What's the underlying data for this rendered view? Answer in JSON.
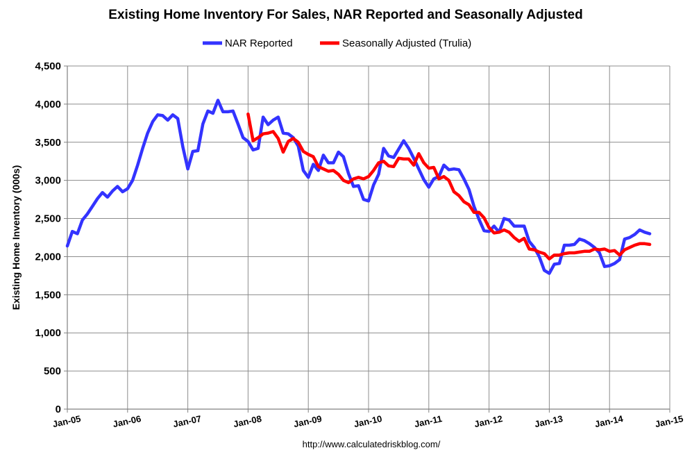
{
  "chart_data": {
    "type": "line",
    "title": "Existing Home Inventory For Sales, NAR Reported and Seasonally Adjusted",
    "xlabel": "",
    "ylabel": "Existing Home Inventory (000s)",
    "source": "http://www.calculatedriskblog.com/",
    "ylim": [
      0,
      4500
    ],
    "yticks": [
      0,
      500,
      1000,
      1500,
      2000,
      2500,
      3000,
      3500,
      4000,
      4500
    ],
    "ytick_labels": [
      "0",
      "500",
      "1,000",
      "1,500",
      "2,000",
      "2,500",
      "3,000",
      "3,500",
      "4,000",
      "4,500"
    ],
    "xlim": [
      2005.0,
      2015.0
    ],
    "xticks": [
      2005,
      2006,
      2007,
      2008,
      2009,
      2010,
      2011,
      2012,
      2013,
      2014,
      2015
    ],
    "xtick_labels": [
      "Jan-05",
      "Jan-06",
      "Jan-07",
      "Jan-08",
      "Jan-09",
      "Jan-10",
      "Jan-11",
      "Jan-12",
      "Jan-13",
      "Jan-14",
      "Jan-15"
    ],
    "grid": true,
    "legend_position": "top-center",
    "series": [
      {
        "name": "NAR Reported",
        "color": "#3333ff",
        "x": [
          2005.0,
          2005.083,
          2005.167,
          2005.25,
          2005.333,
          2005.417,
          2005.5,
          2005.583,
          2005.667,
          2005.75,
          2005.833,
          2005.917,
          2006.0,
          2006.083,
          2006.167,
          2006.25,
          2006.333,
          2006.417,
          2006.5,
          2006.583,
          2006.667,
          2006.75,
          2006.833,
          2006.917,
          2007.0,
          2007.083,
          2007.167,
          2007.25,
          2007.333,
          2007.417,
          2007.5,
          2007.583,
          2007.667,
          2007.75,
          2007.833,
          2007.917,
          2008.0,
          2008.083,
          2008.167,
          2008.25,
          2008.333,
          2008.417,
          2008.5,
          2008.583,
          2008.667,
          2008.75,
          2008.833,
          2008.917,
          2009.0,
          2009.083,
          2009.167,
          2009.25,
          2009.333,
          2009.417,
          2009.5,
          2009.583,
          2009.667,
          2009.75,
          2009.833,
          2009.917,
          2010.0,
          2010.083,
          2010.167,
          2010.25,
          2010.333,
          2010.417,
          2010.5,
          2010.583,
          2010.667,
          2010.75,
          2010.833,
          2010.917,
          2011.0,
          2011.083,
          2011.167,
          2011.25,
          2011.333,
          2011.417,
          2011.5,
          2011.583,
          2011.667,
          2011.75,
          2011.833,
          2011.917,
          2012.0,
          2012.083,
          2012.167,
          2012.25,
          2012.333,
          2012.417,
          2012.5,
          2012.583,
          2012.667,
          2012.75,
          2012.833,
          2012.917,
          2013.0,
          2013.083,
          2013.167,
          2013.25,
          2013.333,
          2013.417,
          2013.5,
          2013.583,
          2013.667,
          2013.75,
          2013.833,
          2013.917,
          2014.0,
          2014.083,
          2014.167,
          2014.25,
          2014.333,
          2014.417,
          2014.5,
          2014.583,
          2014.667
        ],
        "values": [
          2140,
          2330,
          2300,
          2480,
          2560,
          2660,
          2760,
          2840,
          2780,
          2860,
          2920,
          2850,
          2890,
          3000,
          3200,
          3420,
          3620,
          3770,
          3860,
          3850,
          3790,
          3860,
          3810,
          3440,
          3150,
          3380,
          3390,
          3740,
          3910,
          3880,
          4050,
          3900,
          3900,
          3910,
          3740,
          3560,
          3510,
          3400,
          3420,
          3830,
          3730,
          3790,
          3830,
          3620,
          3610,
          3560,
          3450,
          3130,
          3040,
          3210,
          3130,
          3330,
          3230,
          3230,
          3370,
          3310,
          3090,
          2920,
          2930,
          2750,
          2730,
          2940,
          3080,
          3420,
          3320,
          3300,
          3410,
          3520,
          3420,
          3290,
          3150,
          3010,
          2910,
          3020,
          3050,
          3200,
          3140,
          3150,
          3140,
          3020,
          2880,
          2660,
          2490,
          2340,
          2330,
          2400,
          2320,
          2500,
          2480,
          2400,
          2400,
          2400,
          2200,
          2120,
          2000,
          1820,
          1780,
          1900,
          1910,
          2150,
          2150,
          2160,
          2230,
          2210,
          2170,
          2120,
          2050,
          1870,
          1880,
          1910,
          1960,
          2230,
          2250,
          2290,
          2350,
          2320,
          2300
        ]
      },
      {
        "name": "Seasonally Adjusted (Trulia)",
        "color": "#ff0000",
        "x": [
          2008.0,
          2008.083,
          2008.167,
          2008.25,
          2008.333,
          2008.417,
          2008.5,
          2008.583,
          2008.667,
          2008.75,
          2008.833,
          2008.917,
          2009.0,
          2009.083,
          2009.167,
          2009.25,
          2009.333,
          2009.417,
          2009.5,
          2009.583,
          2009.667,
          2009.75,
          2009.833,
          2009.917,
          2010.0,
          2010.083,
          2010.167,
          2010.25,
          2010.333,
          2010.417,
          2010.5,
          2010.583,
          2010.667,
          2010.75,
          2010.833,
          2010.917,
          2011.0,
          2011.083,
          2011.167,
          2011.25,
          2011.333,
          2011.417,
          2011.5,
          2011.583,
          2011.667,
          2011.75,
          2011.833,
          2011.917,
          2012.0,
          2012.083,
          2012.167,
          2012.25,
          2012.333,
          2012.417,
          2012.5,
          2012.583,
          2012.667,
          2012.75,
          2012.833,
          2012.917,
          2013.0,
          2013.083,
          2013.167,
          2013.25,
          2013.333,
          2013.417,
          2013.5,
          2013.583,
          2013.667,
          2013.75,
          2013.833,
          2013.917,
          2014.0,
          2014.083,
          2014.167,
          2014.25,
          2014.333,
          2014.417,
          2014.5,
          2014.583,
          2014.667
        ],
        "values": [
          3870,
          3520,
          3560,
          3610,
          3620,
          3640,
          3550,
          3370,
          3510,
          3550,
          3500,
          3380,
          3340,
          3310,
          3180,
          3150,
          3120,
          3130,
          3080,
          3000,
          2970,
          3020,
          3040,
          3020,
          3050,
          3130,
          3230,
          3250,
          3190,
          3180,
          3290,
          3280,
          3280,
          3200,
          3350,
          3230,
          3160,
          3170,
          3020,
          3050,
          3000,
          2850,
          2800,
          2720,
          2680,
          2580,
          2580,
          2510,
          2380,
          2310,
          2320,
          2350,
          2320,
          2250,
          2200,
          2240,
          2100,
          2090,
          2060,
          2040,
          1970,
          2020,
          2020,
          2040,
          2050,
          2050,
          2060,
          2070,
          2070,
          2100,
          2090,
          2100,
          2070,
          2080,
          2020,
          2090,
          2120,
          2150,
          2170,
          2170,
          2160
        ]
      }
    ]
  }
}
